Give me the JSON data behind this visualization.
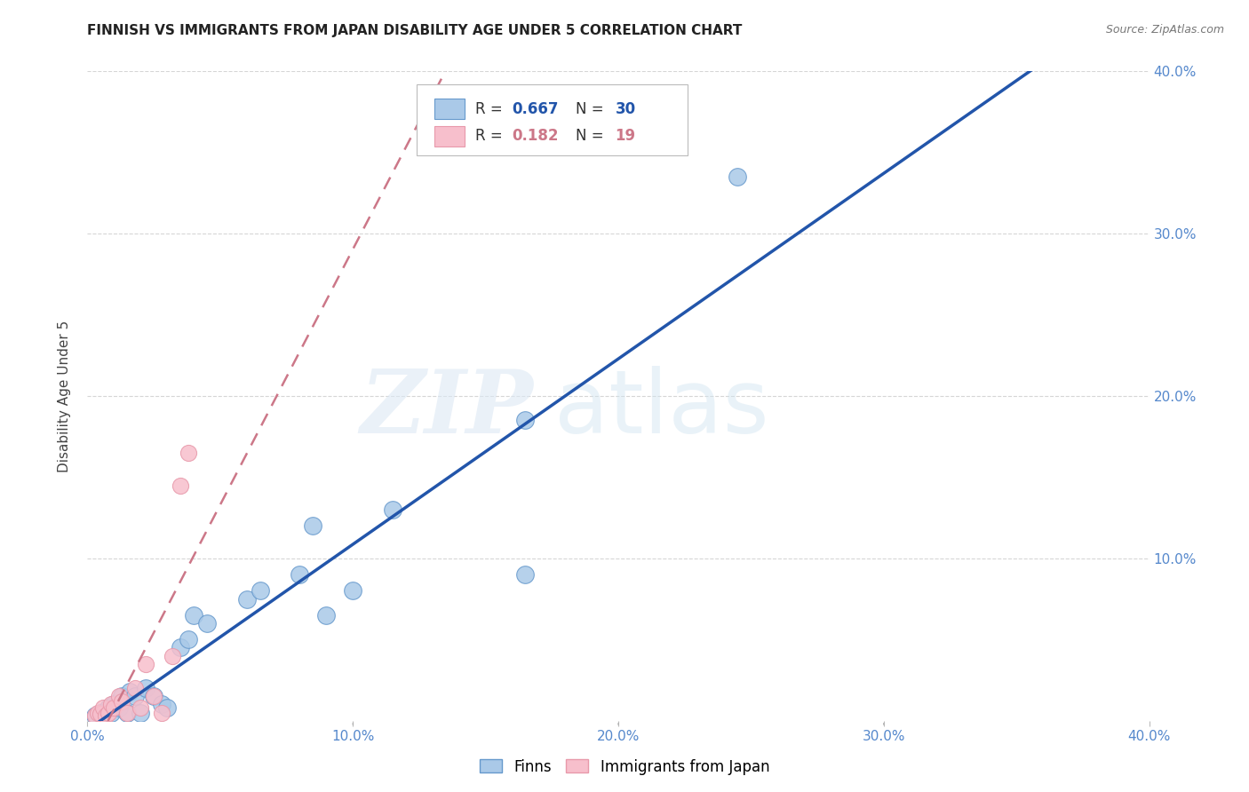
{
  "title": "FINNISH VS IMMIGRANTS FROM JAPAN DISABILITY AGE UNDER 5 CORRELATION CHART",
  "source": "Source: ZipAtlas.com",
  "ylabel": "Disability Age Under 5",
  "xlim": [
    0.0,
    0.4
  ],
  "ylim": [
    0.0,
    0.4
  ],
  "xtick_vals": [
    0.0,
    0.1,
    0.2,
    0.3,
    0.4
  ],
  "xtick_labels": [
    "0.0%",
    "10.0%",
    "20.0%",
    "30.0%",
    "40.0%"
  ],
  "ytick_vals": [
    0.1,
    0.2,
    0.3,
    0.4
  ],
  "ytick_labels": [
    "10.0%",
    "20.0%",
    "30.0%",
    "40.0%"
  ],
  "legend_r1": "0.667",
  "legend_n1": "30",
  "legend_r2": "0.182",
  "legend_n2": "19",
  "color_finns": "#aac9e8",
  "color_japan": "#f7bfcc",
  "color_edge_finns": "#6699cc",
  "color_edge_japan": "#e899aa",
  "color_line_finns": "#2255aa",
  "color_line_japan": "#cc7788",
  "tick_color": "#5588cc",
  "finns_x": [
    0.003,
    0.005,
    0.006,
    0.008,
    0.009,
    0.01,
    0.012,
    0.013,
    0.015,
    0.016,
    0.018,
    0.02,
    0.022,
    0.025,
    0.028,
    0.03,
    0.035,
    0.038,
    0.04,
    0.045,
    0.06,
    0.065,
    0.08,
    0.085,
    0.09,
    0.1,
    0.115,
    0.165,
    0.165,
    0.245
  ],
  "finns_y": [
    0.003,
    0.005,
    0.003,
    0.008,
    0.005,
    0.01,
    0.008,
    0.015,
    0.005,
    0.018,
    0.015,
    0.005,
    0.02,
    0.015,
    0.01,
    0.008,
    0.045,
    0.05,
    0.065,
    0.06,
    0.075,
    0.08,
    0.09,
    0.12,
    0.065,
    0.08,
    0.13,
    0.185,
    0.09,
    0.335
  ],
  "japan_x": [
    0.003,
    0.004,
    0.005,
    0.006,
    0.007,
    0.008,
    0.009,
    0.01,
    0.012,
    0.013,
    0.015,
    0.018,
    0.02,
    0.022,
    0.025,
    0.028,
    0.032,
    0.035,
    0.038
  ],
  "japan_y": [
    0.003,
    0.005,
    0.004,
    0.008,
    0.003,
    0.005,
    0.01,
    0.008,
    0.015,
    0.012,
    0.005,
    0.02,
    0.008,
    0.035,
    0.015,
    0.005,
    0.04,
    0.145,
    0.165
  ]
}
